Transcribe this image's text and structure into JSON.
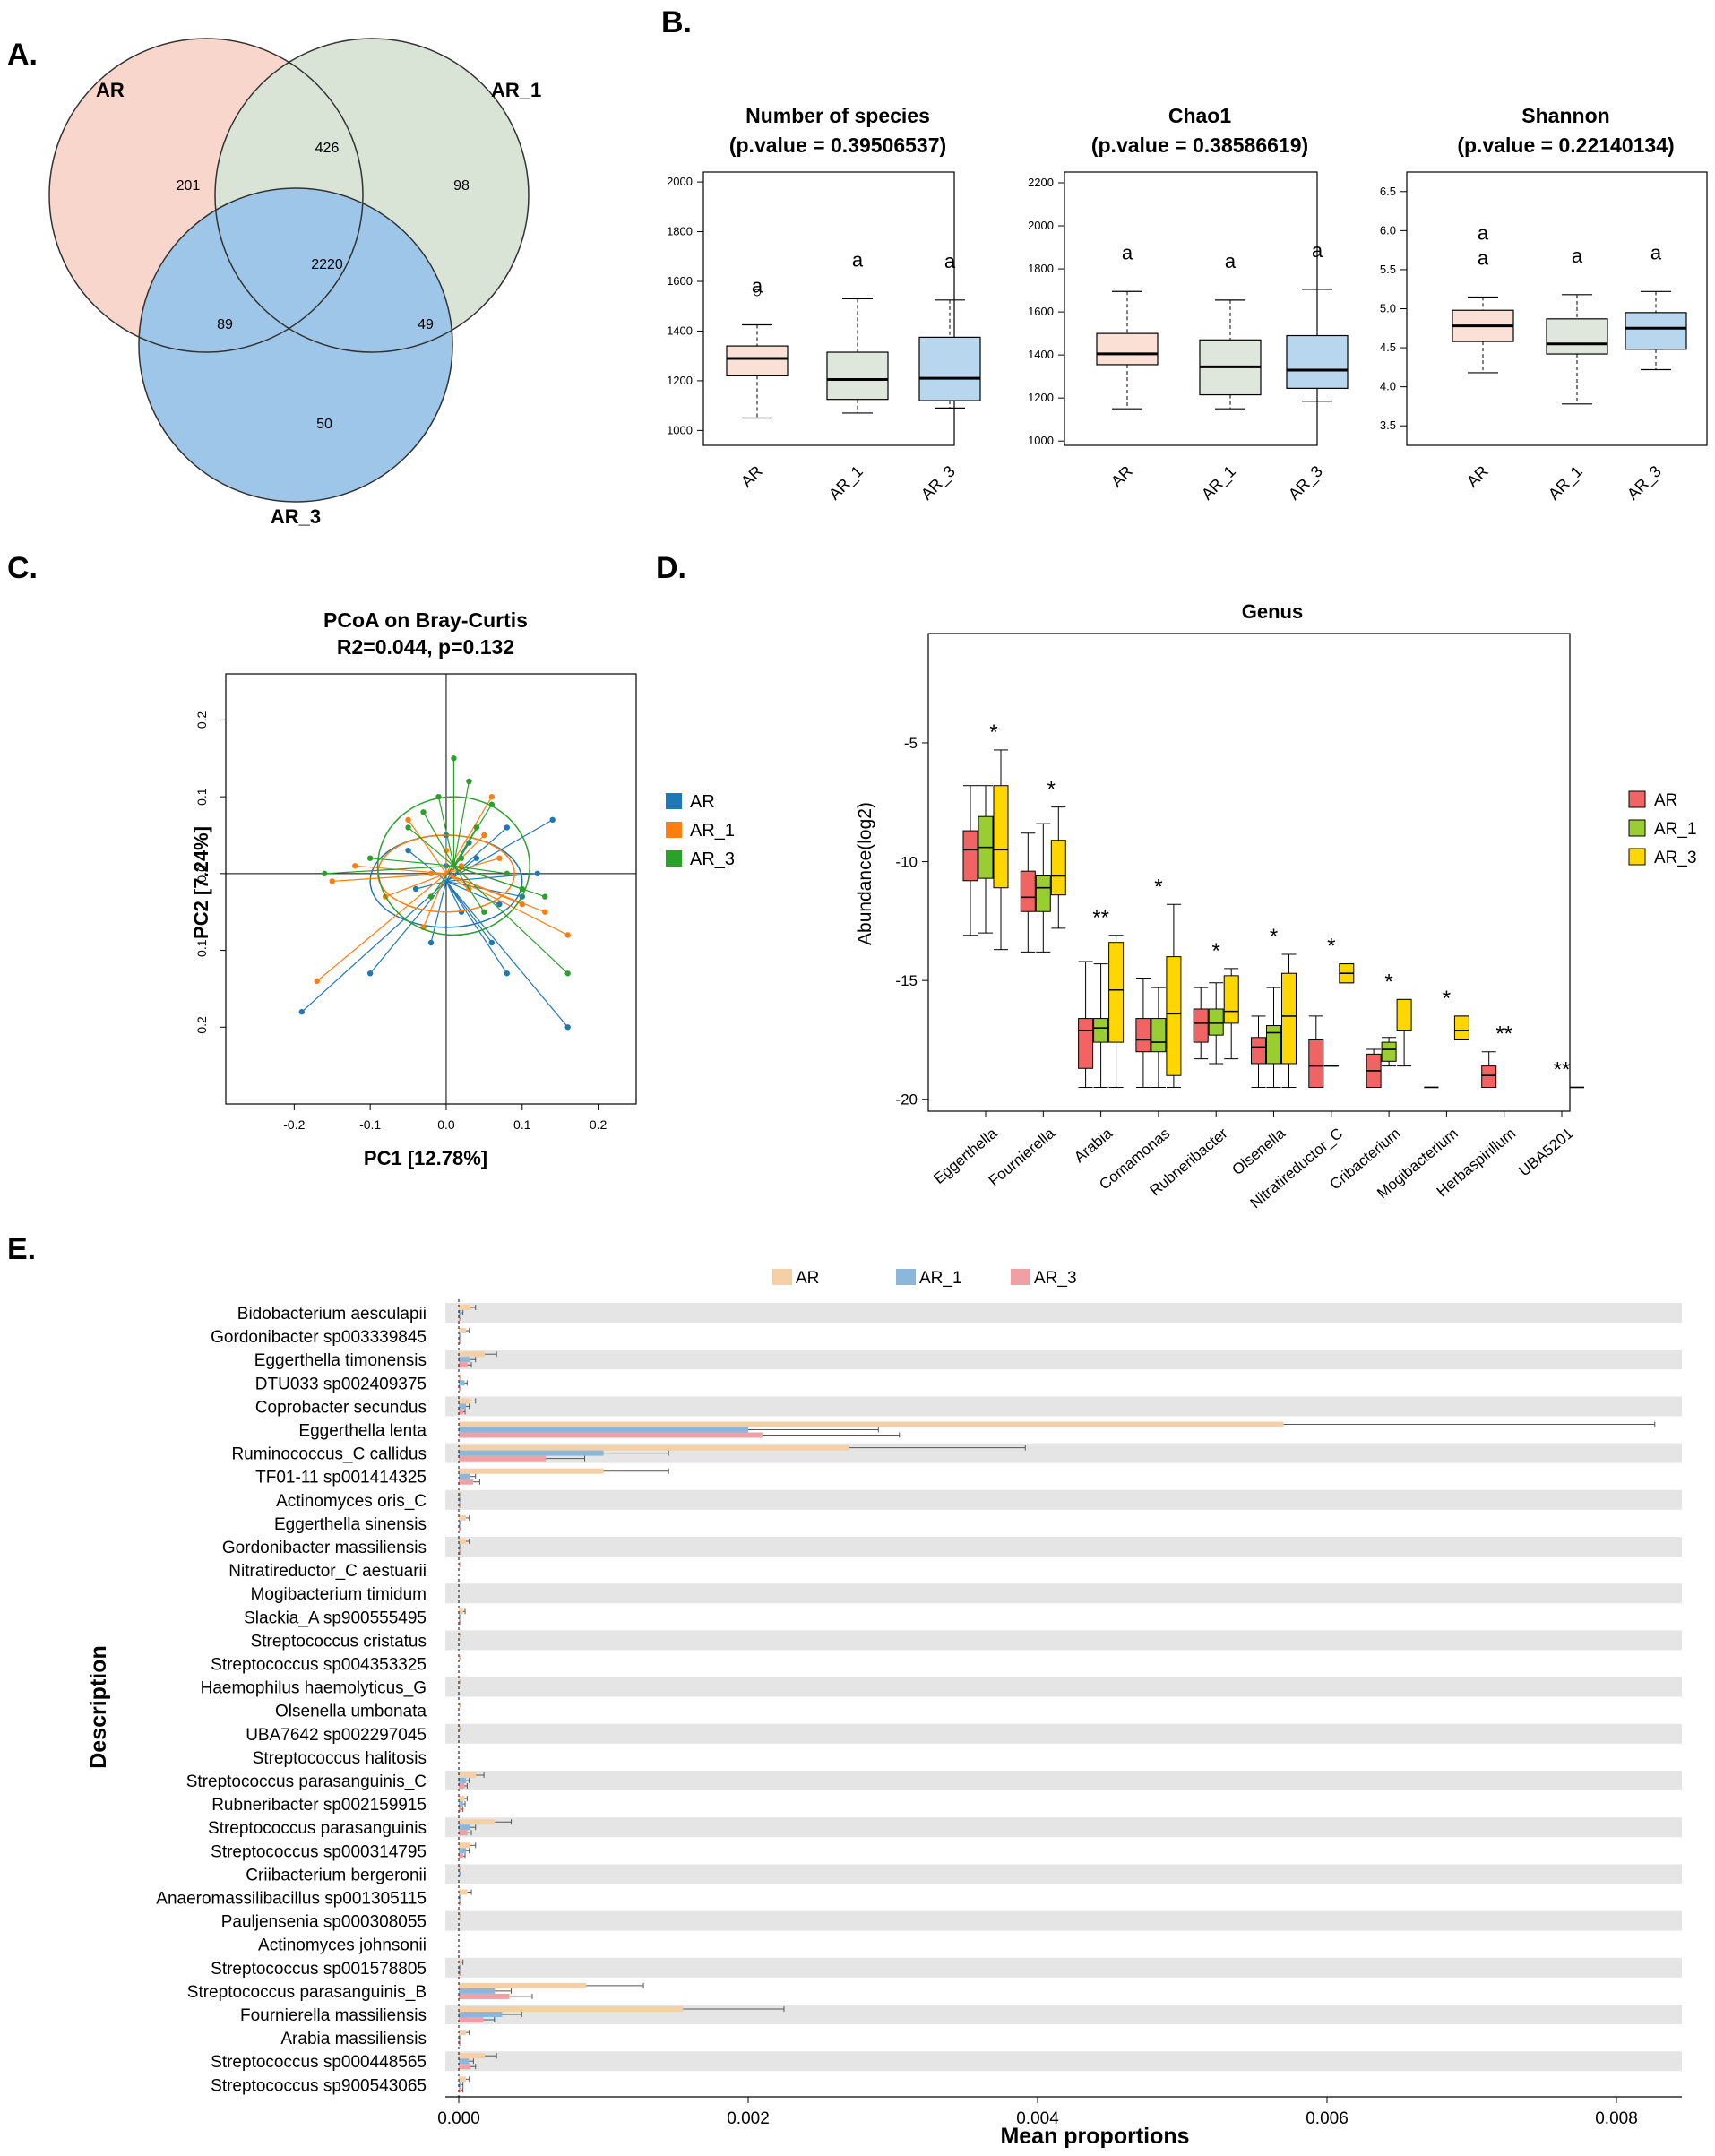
{
  "panels": {
    "A": "A.",
    "B": "B.",
    "C": "C.",
    "D": "D.",
    "E": "E."
  },
  "colors": {
    "venn": [
      "#f9d6cb",
      "#d9e3d6",
      "#9dc6e8"
    ],
    "alpha": [
      "#fbe0d6",
      "#dfe6dc",
      "#b9d6ef"
    ],
    "pcoa": [
      "#1f77b4",
      "#ff7f0e",
      "#2ca02c"
    ],
    "genus": [
      "#f06464",
      "#9acd32",
      "#ffd700"
    ],
    "bars": [
      "#f5cfa6",
      "#8ab8dd",
      "#eea0a5"
    ],
    "stripe": "#e5e5e5"
  },
  "chart_data": [
    {
      "type": "venn",
      "sets": [
        "AR",
        "AR_1",
        "AR_3"
      ],
      "regions": {
        "AR": "201",
        "AR_1": "98",
        "AR_3": "50",
        "AR&AR_1": "426",
        "AR&AR_3": "89",
        "AR_1&AR_3": "49",
        "all": "2220"
      }
    },
    {
      "type": "box",
      "title": "Number of species",
      "subtitle": "(p.value = 0.39506537)",
      "categories": [
        "AR",
        "AR_1",
        "AR_3"
      ],
      "ylim": [
        940,
        2040
      ],
      "yticks": [
        "1000",
        "1200",
        "1400",
        "1600",
        "1800",
        "2000"
      ],
      "boxes": [
        {
          "min": 1050,
          "q1": 1220,
          "median": 1290,
          "q3": 1340,
          "max": 1425,
          "outliers": [
            1555
          ]
        },
        {
          "min": 1070,
          "q1": 1125,
          "median": 1205,
          "q3": 1315,
          "max": 1530,
          "outliers": []
        },
        {
          "min": 1090,
          "q1": 1120,
          "median": 1210,
          "q3": 1375,
          "max": 1525,
          "outliers": []
        }
      ],
      "letters": [
        [
          "a"
        ],
        [
          "a"
        ],
        [
          "a"
        ]
      ]
    },
    {
      "type": "box",
      "title": "Chao1",
      "subtitle": "(p.value = 0.38586619)",
      "categories": [
        "AR",
        "AR_1",
        "AR_3"
      ],
      "ylim": [
        980,
        2250
      ],
      "yticks": [
        "1000",
        "1200",
        "1400",
        "1600",
        "1800",
        "2000",
        "2200"
      ],
      "boxes": [
        {
          "min": 1150,
          "q1": 1355,
          "median": 1405,
          "q3": 1500,
          "max": 1695,
          "outliers": []
        },
        {
          "min": 1150,
          "q1": 1215,
          "median": 1345,
          "q3": 1470,
          "max": 1655,
          "outliers": []
        },
        {
          "min": 1185,
          "q1": 1245,
          "median": 1330,
          "q3": 1490,
          "max": 1705,
          "outliers": []
        }
      ],
      "letters": [
        [
          "a"
        ],
        [
          "a"
        ],
        [
          "a"
        ]
      ]
    },
    {
      "type": "box",
      "title": "Shannon",
      "subtitle": "(p.value = 0.22140134)",
      "categories": [
        "AR",
        "AR_1",
        "AR_3"
      ],
      "ylim": [
        3.25,
        6.75
      ],
      "yticks": [
        "3.5",
        "4.0",
        "4.5",
        "5.0",
        "5.5",
        "6.0",
        "6.5"
      ],
      "boxes": [
        {
          "min": 4.18,
          "q1": 4.58,
          "median": 4.78,
          "q3": 4.98,
          "max": 5.15,
          "outliers": []
        },
        {
          "min": 3.78,
          "q1": 4.42,
          "median": 4.55,
          "q3": 4.87,
          "max": 5.18,
          "outliers": []
        },
        {
          "min": 4.22,
          "q1": 4.48,
          "median": 4.75,
          "q3": 4.95,
          "max": 5.22,
          "outliers": []
        }
      ],
      "letters": [
        [
          "a",
          "a"
        ],
        [
          "a"
        ],
        [
          "a"
        ]
      ]
    },
    {
      "type": "scatter",
      "title": "PCoA on Bray-Curtis",
      "subtitle": "R2=0.044, p=0.132",
      "xlabel": "PC1  [12.78%]",
      "ylabel": "PC2  [7.24%]",
      "xlim": [
        -0.29,
        0.25
      ],
      "ylim": [
        -0.3,
        0.26
      ],
      "xticks": [
        "-0.2",
        "-0.1",
        "0.0",
        "0.1",
        "0.2"
      ],
      "yticks": [
        "-0.2",
        "-0.1",
        "0.0",
        "0.1",
        "0.2"
      ],
      "legend": [
        "AR",
        "AR_1",
        "AR_3"
      ],
      "series": [
        {
          "name": "AR",
          "centroid": [
            0.0,
            -0.01
          ],
          "ellipse": [
            0.1,
            0.06
          ],
          "points": [
            [
              -0.19,
              -0.18
            ],
            [
              -0.1,
              -0.13
            ],
            [
              -0.05,
              0.03
            ],
            [
              -0.02,
              -0.09
            ],
            [
              0.0,
              0.01
            ],
            [
              0.02,
              -0.05
            ],
            [
              0.04,
              0.02
            ],
            [
              0.07,
              -0.04
            ],
            [
              0.08,
              0.06
            ],
            [
              0.08,
              -0.13
            ],
            [
              0.1,
              -0.03
            ],
            [
              0.12,
              0.0
            ],
            [
              0.14,
              0.07
            ],
            [
              0.16,
              -0.2
            ],
            [
              0.06,
              -0.09
            ],
            [
              -0.04,
              -0.02
            ],
            [
              0.0,
              0.05
            ],
            [
              0.03,
              0.04
            ]
          ]
        },
        {
          "name": "AR_1",
          "centroid": [
            0.0,
            0.0
          ],
          "ellipse": [
            0.09,
            0.05
          ],
          "points": [
            [
              -0.17,
              -0.14
            ],
            [
              -0.12,
              0.01
            ],
            [
              -0.08,
              -0.03
            ],
            [
              -0.05,
              0.07
            ],
            [
              -0.02,
              0.0
            ],
            [
              0.0,
              0.03
            ],
            [
              0.03,
              -0.02
            ],
            [
              0.05,
              0.05
            ],
            [
              0.07,
              0.02
            ],
            [
              0.1,
              -0.04
            ],
            [
              0.13,
              -0.05
            ],
            [
              0.16,
              -0.08
            ],
            [
              -0.15,
              -0.01
            ],
            [
              -0.03,
              -0.07
            ],
            [
              0.02,
              0.01
            ],
            [
              0.06,
              0.1
            ]
          ]
        },
        {
          "name": "AR_3",
          "centroid": [
            0.01,
            0.01
          ],
          "ellipse": [
            0.1,
            0.09
          ],
          "points": [
            [
              -0.16,
              0.0
            ],
            [
              -0.1,
              0.02
            ],
            [
              -0.05,
              0.06
            ],
            [
              -0.03,
              0.08
            ],
            [
              -0.01,
              0.1
            ],
            [
              0.01,
              0.15
            ],
            [
              0.03,
              0.12
            ],
            [
              0.04,
              0.06
            ],
            [
              0.06,
              0.09
            ],
            [
              0.08,
              0.0
            ],
            [
              0.1,
              -0.02
            ],
            [
              0.13,
              -0.03
            ],
            [
              0.16,
              -0.13
            ],
            [
              -0.02,
              -0.03
            ],
            [
              0.02,
              0.02
            ],
            [
              0.05,
              -0.05
            ]
          ]
        }
      ]
    },
    {
      "type": "box",
      "title": "Genus",
      "ylabel": "Abundance(log2)",
      "ylim": [
        -20.5,
        -0.4
      ],
      "yticks": [
        "-5",
        "-10",
        "-15",
        "-20"
      ],
      "legend": [
        "AR",
        "AR_1",
        "AR_3"
      ],
      "categories": [
        "Eggerthella",
        "Fournierella",
        "Arabia",
        "Comamonas",
        "Rubneribacter",
        "Olsenella",
        "Nitratireductor_C",
        "Cribacterium",
        "Mogibacterium",
        "Herbaspirillum",
        "UBA5201"
      ],
      "significance": [
        "*",
        "*",
        "**",
        "*",
        "*",
        "*",
        "*",
        "*",
        "*",
        "**",
        "**"
      ],
      "boxes": [
        [
          {
            "min": -13.1,
            "q1": -10.8,
            "median": -9.5,
            "q3": -8.7,
            "max": -6.8
          },
          {
            "min": -13.0,
            "q1": -10.7,
            "median": -9.4,
            "q3": -8.1,
            "max": -6.8
          },
          {
            "min": -13.7,
            "q1": -11.1,
            "median": -9.5,
            "q3": -6.8,
            "max": -5.3
          }
        ],
        [
          {
            "min": -13.8,
            "q1": -12.1,
            "median": -11.5,
            "q3": -10.4,
            "max": -8.8
          },
          {
            "min": -13.8,
            "q1": -12.1,
            "median": -11.1,
            "q3": -10.6,
            "max": -8.4
          },
          {
            "min": -12.8,
            "q1": -11.4,
            "median": -10.6,
            "q3": -9.1,
            "max": -7.7
          }
        ],
        [
          {
            "min": -19.5,
            "q1": -18.7,
            "median": -17.1,
            "q3": -16.6,
            "max": -14.2
          },
          {
            "min": -19.5,
            "q1": -17.6,
            "median": -17.0,
            "q3": -16.6,
            "max": -14.3
          },
          {
            "min": -19.5,
            "q1": -17.6,
            "median": -15.4,
            "q3": -13.4,
            "max": -13.1
          }
        ],
        [
          {
            "min": -19.5,
            "q1": -18.0,
            "median": -17.5,
            "q3": -16.6,
            "max": -14.9
          },
          {
            "min": -19.5,
            "q1": -18.0,
            "median": -17.6,
            "q3": -16.6,
            "max": -15.3
          },
          {
            "min": -19.5,
            "q1": -19.0,
            "median": -16.4,
            "q3": -14.0,
            "max": -11.8
          }
        ],
        [
          {
            "min": -18.3,
            "q1": -17.6,
            "median": -16.8,
            "q3": -16.2,
            "max": -15.3
          },
          {
            "min": -18.5,
            "q1": -17.3,
            "median": -16.8,
            "q3": -16.2,
            "max": -15.1
          },
          {
            "min": -18.3,
            "q1": -16.8,
            "median": -16.3,
            "q3": -14.8,
            "max": -14.5
          }
        ],
        [
          {
            "min": -19.5,
            "q1": -18.5,
            "median": -17.8,
            "q3": -17.4,
            "max": -16.5
          },
          {
            "min": -19.5,
            "q1": -18.5,
            "median": -17.2,
            "q3": -16.9,
            "max": -15.3
          },
          {
            "min": -19.5,
            "q1": -18.5,
            "median": -16.5,
            "q3": -14.7,
            "max": -13.9
          }
        ],
        [
          {
            "min": -19.5,
            "q1": -19.5,
            "median": -18.6,
            "q3": -17.5,
            "max": -16.5
          },
          {
            "min": -18.6,
            "q1": -18.6,
            "median": -18.6,
            "q3": -18.6,
            "max": -18.6
          },
          {
            "min": -15.1,
            "q1": -15.1,
            "median": -14.7,
            "q3": -14.3,
            "max": -14.3
          }
        ],
        [
          {
            "min": -19.5,
            "q1": -19.5,
            "median": -18.8,
            "q3": -18.1,
            "max": -17.9
          },
          {
            "min": -18.6,
            "q1": -18.4,
            "median": -17.9,
            "q3": -17.6,
            "max": -17.4
          },
          {
            "min": -18.6,
            "q1": -17.1,
            "median": -17.1,
            "q3": -15.8,
            "max": -15.8
          }
        ],
        [
          {
            "min": -19.5,
            "q1": -19.5,
            "median": -19.5,
            "q3": -19.5,
            "max": -19.5
          },
          null,
          {
            "min": -17.5,
            "q1": -17.5,
            "median": -17.1,
            "q3": -16.5,
            "max": -16.5
          }
        ],
        [
          {
            "min": -19.5,
            "q1": -19.5,
            "median": -19.0,
            "q3": -18.6,
            "max": -18.0
          },
          null,
          null
        ],
        [
          null,
          null,
          {
            "min": -19.5,
            "q1": -19.5,
            "median": -19.5,
            "q3": -19.5,
            "max": -19.5
          }
        ]
      ]
    },
    {
      "type": "bar",
      "orientation": "horizontal",
      "xlabel": "Mean proportions",
      "ylabel": "Description",
      "xlim": [
        -0.0002,
        0.0085
      ],
      "xticks": [
        "0.000",
        "0.002",
        "0.004",
        "0.006",
        "0.008"
      ],
      "legend": [
        "AR",
        "AR_1",
        "AR_3"
      ],
      "categories": [
        "Bidobacterium aesculapii",
        "Gordonibacter sp003339845",
        "Eggerthella timonensis",
        "DTU033 sp002409375",
        "Coprobacter secundus",
        "Eggerthella lenta",
        "Ruminococcus_C callidus",
        "TF01-11 sp001414325",
        "Actinomyces oris_C",
        "Eggerthella sinensis",
        "Gordonibacter massiliensis",
        "Nitratireductor_C aestuarii",
        "Mogibacterium timidum",
        "Slackia_A sp900555495",
        "Streptococcus cristatus",
        "Streptococcus sp004353325",
        "Haemophilus haemolyticus_G",
        "Olsenella umbonata",
        "UBA7642 sp002297045",
        "Streptococcus halitosis",
        "Streptococcus parasanguinis_C",
        "Rubneribacter sp002159915",
        "Streptococcus parasanguinis",
        "Streptococcus sp000314795",
        "Criibacterium bergeronii",
        "Anaeromassilibacillus sp001305115",
        "Pauljensenia sp000308055",
        "Actinomyces johnsonii",
        "Streptococcus sp001578805",
        "Streptococcus parasanguinis_B",
        "Fournierella massiliensis",
        "Arabia massiliensis",
        "Streptococcus sp000448565",
        "Streptococcus sp900543065"
      ],
      "series": [
        {
          "name": "AR",
          "values": [
            8e-05,
            5e-05,
            0.00018,
            1e-05,
            8e-05,
            0.0057,
            0.0027,
            0.001,
            1e-05,
            5e-05,
            5e-05,
            1e-05,
            0.0,
            3e-05,
            1e-05,
            1e-05,
            1e-05,
            1e-05,
            1e-05,
            0.0,
            0.00012,
            4e-05,
            0.00025,
            8e-05,
            1e-05,
            6e-05,
            1e-05,
            0.0,
            2e-05,
            0.00088,
            0.00155,
            5e-05,
            0.00018,
            5e-05
          ]
        },
        {
          "name": "AR_1",
          "values": [
            2e-05,
            1e-05,
            8e-05,
            4e-05,
            5e-05,
            0.002,
            0.001,
            8e-05,
            1e-05,
            1e-05,
            1e-05,
            0.0,
            0.0,
            1e-05,
            0.0,
            0.0,
            0.0,
            0.0,
            0.0,
            0.0,
            5e-05,
            3e-05,
            8e-05,
            5e-05,
            1e-05,
            1e-05,
            0.0,
            0.0,
            1e-05,
            0.00025,
            0.0003,
            1e-05,
            7e-05,
            2e-05
          ]
        },
        {
          "name": "AR_3",
          "values": [
            1e-05,
            1e-05,
            6e-05,
            1e-05,
            3e-05,
            0.0021,
            0.0006,
            0.0001,
            1e-05,
            1e-05,
            1e-05,
            0.0,
            0.0,
            1e-05,
            0.0,
            0.0,
            0.0,
            0.0,
            0.0,
            0.0,
            4e-05,
            2e-05,
            6e-05,
            3e-05,
            0.0,
            1e-05,
            0.0,
            0.0,
            1e-05,
            0.00035,
            0.00017,
            1e-05,
            8e-05,
            2e-05
          ]
        }
      ]
    }
  ]
}
